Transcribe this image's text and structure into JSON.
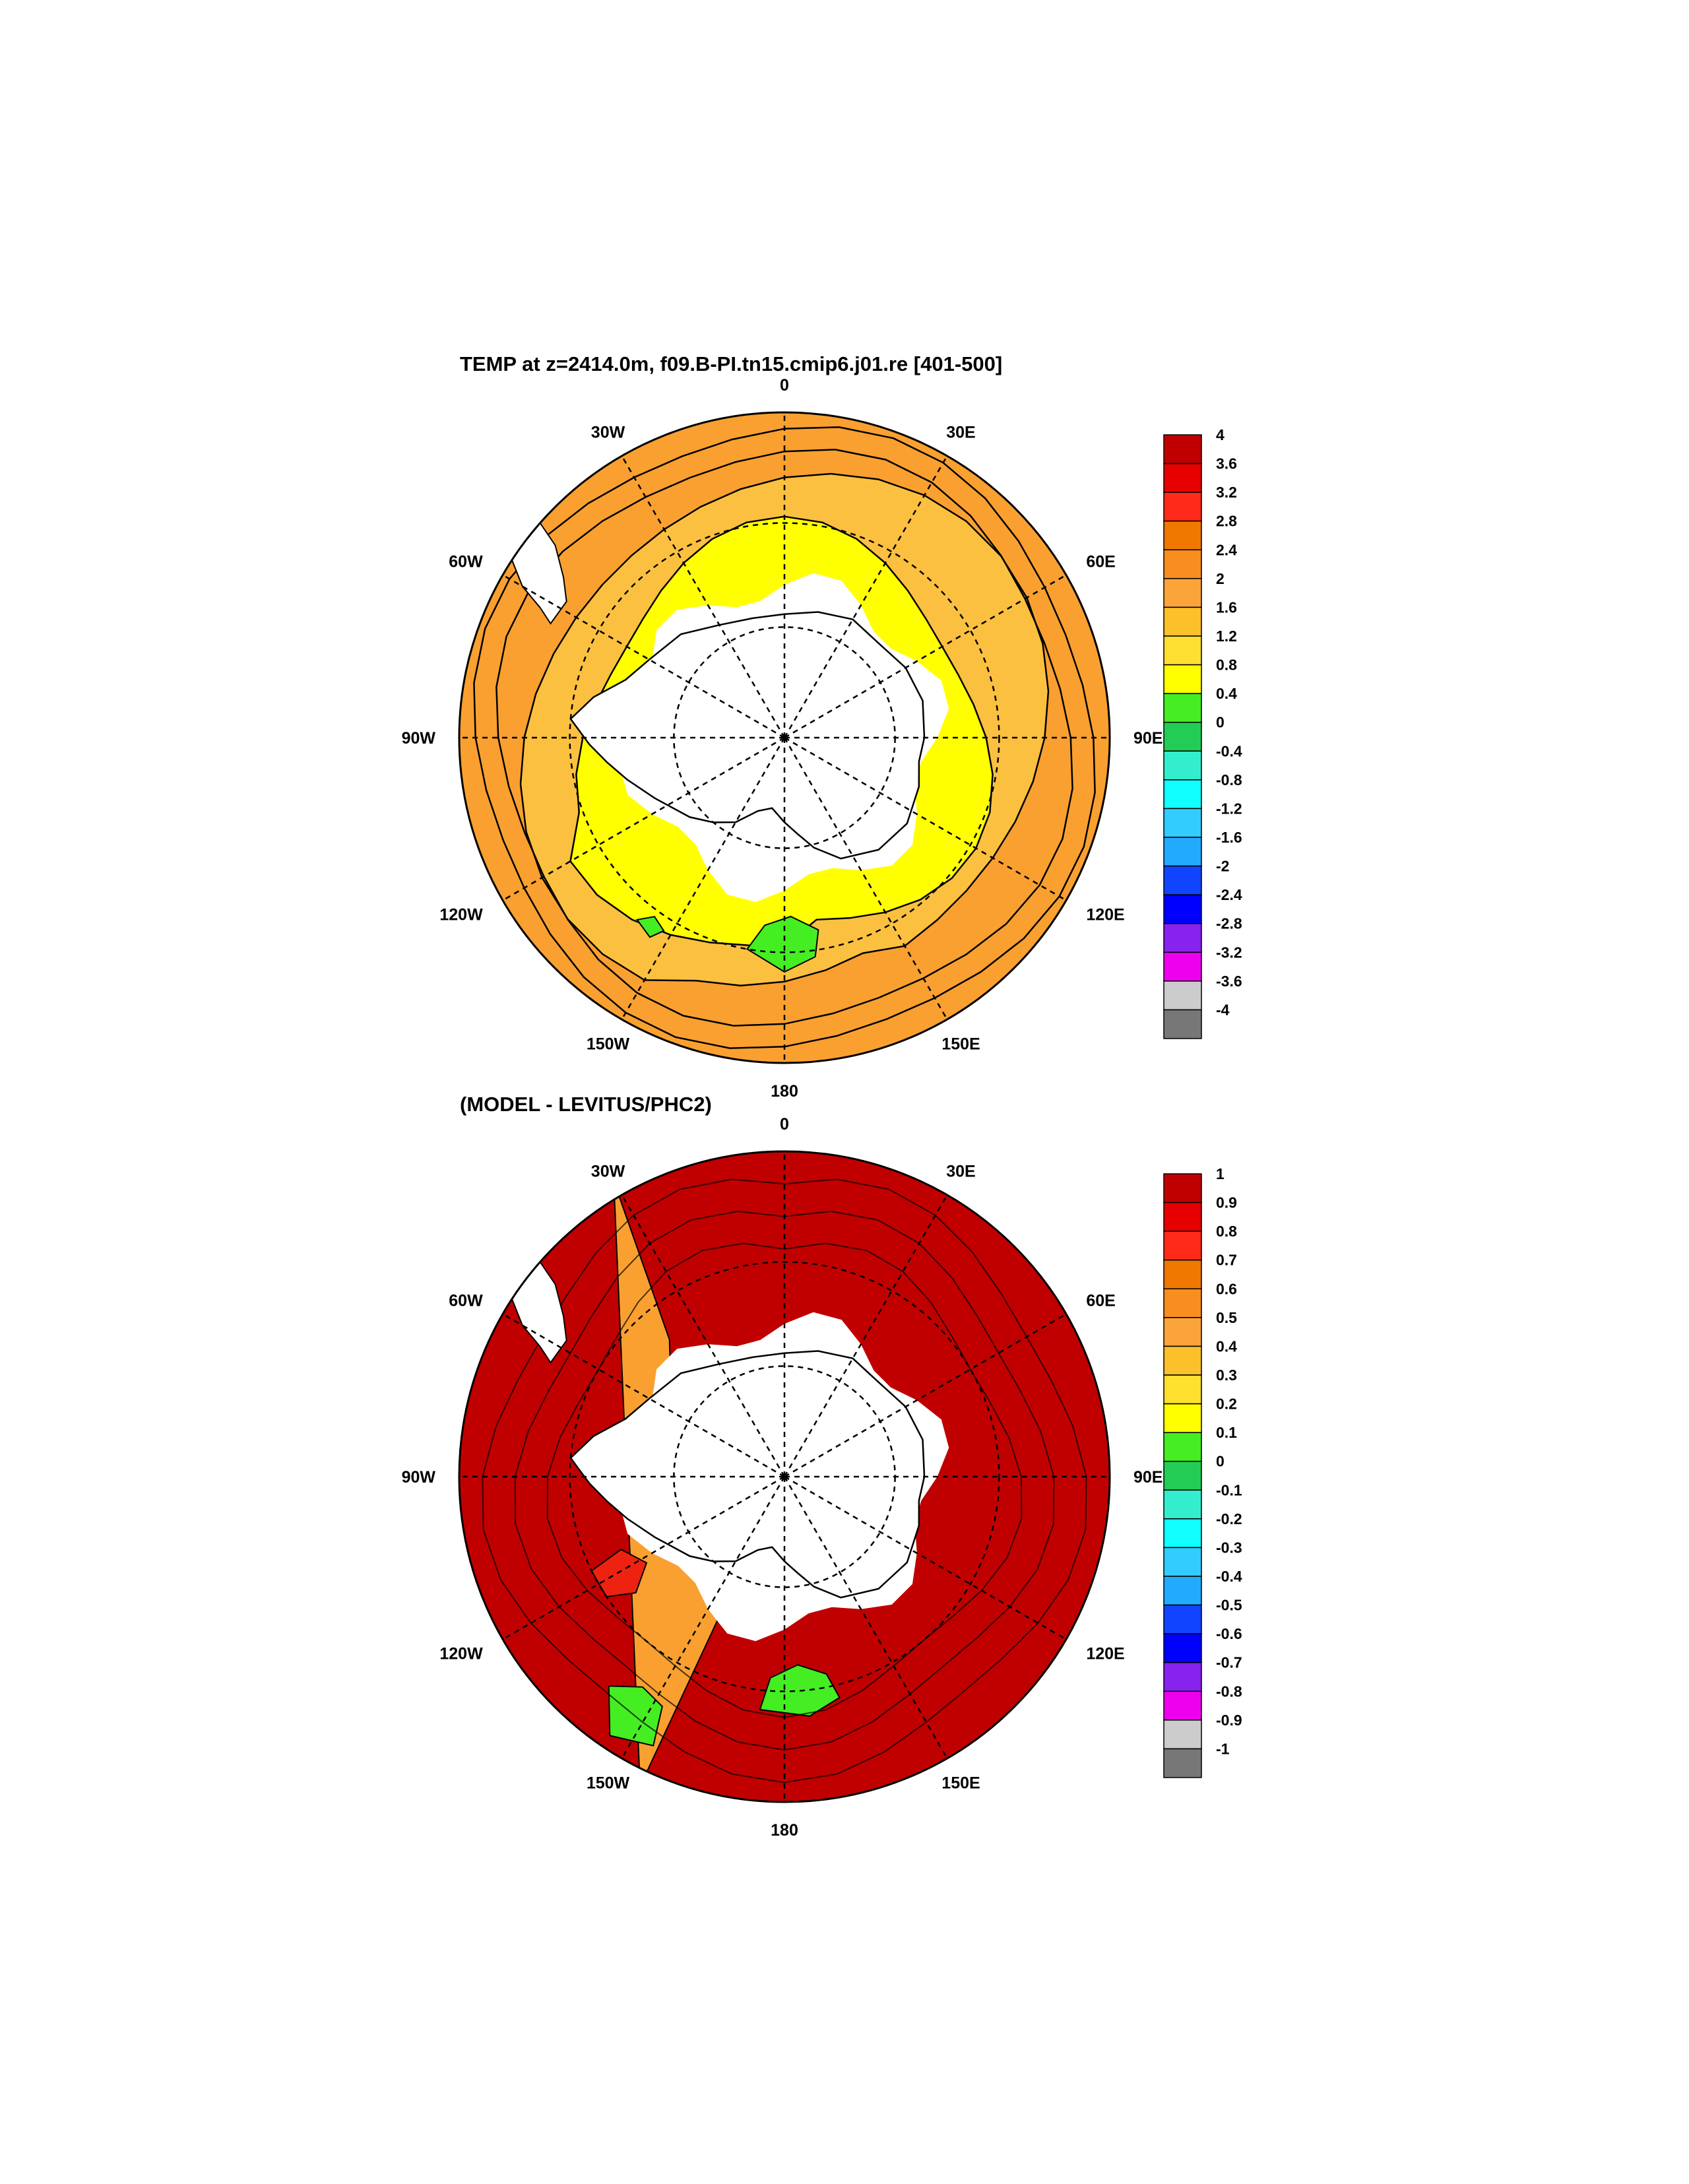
{
  "panels": [
    {
      "title": "TEMP at z=2414.0m, f09.B-PI.tn15.cmip6.j01.re [401-500]",
      "lon_labels": [
        "0",
        "30E",
        "60E",
        "90E",
        "120E",
        "150E",
        "180",
        "150W",
        "120W",
        "90W",
        "60W",
        "30W"
      ],
      "colorbar": {
        "labels": [
          "4",
          "3.6",
          "3.2",
          "2.8",
          "2.4",
          "2",
          "1.6",
          "1.2",
          "0.8",
          "0.4",
          "0",
          "-0.4",
          "-0.8",
          "-1.2",
          "-1.6",
          "-2",
          "-2.4",
          "-2.8",
          "-3.2",
          "-3.6",
          "-4"
        ],
        "colors": [
          "#c00000",
          "#e60000",
          "#ff2a1a",
          "#f07800",
          "#f88e20",
          "#fba43a",
          "#fcc02a",
          "#fde030",
          "#ffff00",
          "#44ee22",
          "#22cc55",
          "#33eecc",
          "#11ffff",
          "#33ccff",
          "#22aaff",
          "#1144ff",
          "#0000ff",
          "#8822ee",
          "#ee00ee",
          "#cccccc",
          "#777777"
        ]
      },
      "field": {
        "outer_ring_color": "#f9a030",
        "middle_ring_color": "#fcc040",
        "inner_ring_color": "#ffff00",
        "green_patch_color": "#44ee22"
      }
    },
    {
      "title": "(MODEL - LEVITUS/PHC2)",
      "lon_labels": [
        "0",
        "30E",
        "60E",
        "90E",
        "120E",
        "150E",
        "180",
        "150W",
        "120W",
        "90W",
        "60W",
        "30W"
      ],
      "colorbar": {
        "labels": [
          "1",
          "0.9",
          "0.8",
          "0.7",
          "0.6",
          "0.5",
          "0.4",
          "0.3",
          "0.2",
          "0.1",
          "0",
          "-0.1",
          "-0.2",
          "-0.3",
          "-0.4",
          "-0.5",
          "-0.6",
          "-0.7",
          "-0.8",
          "-0.9",
          "-1"
        ],
        "colors": [
          "#c00000",
          "#e60000",
          "#ff2a1a",
          "#f07800",
          "#f88e20",
          "#fba43a",
          "#fcc02a",
          "#fde030",
          "#ffff00",
          "#44ee22",
          "#22cc55",
          "#33eecc",
          "#11ffff",
          "#33ccff",
          "#22aaff",
          "#1144ff",
          "#0000ff",
          "#8822ee",
          "#ee00ee",
          "#cccccc",
          "#777777"
        ]
      },
      "field": {
        "east_color": "#c00000",
        "west_color": "#f9a030",
        "red_patch_color": "#ee2211",
        "green_patch_color": "#44ee22"
      }
    }
  ]
}
